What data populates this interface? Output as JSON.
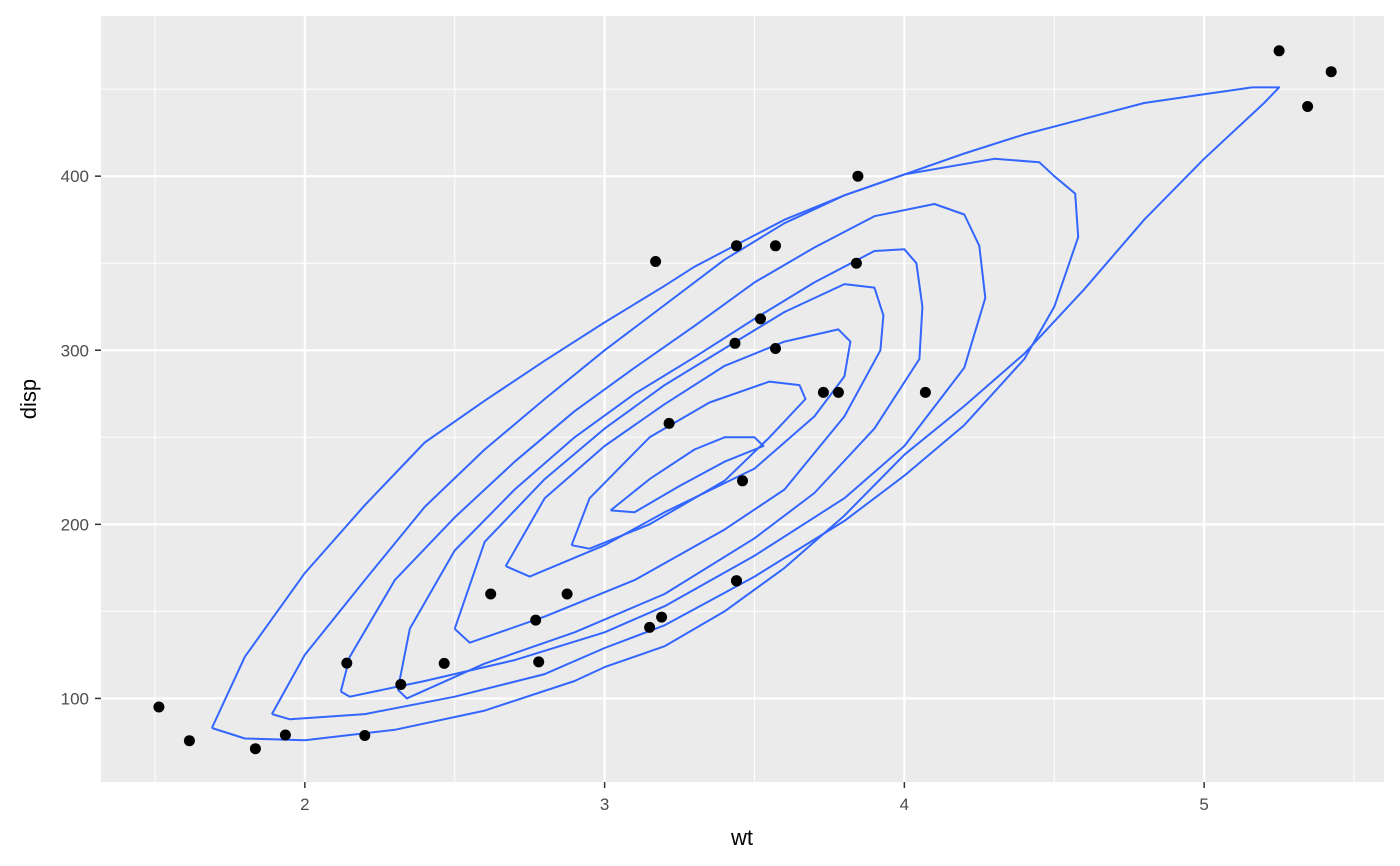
{
  "chart_data": {
    "type": "scatter",
    "title": "",
    "xlabel": "wt",
    "ylabel": "disp",
    "xlim": [
      1.32,
      5.6
    ],
    "ylim": [
      52,
      492
    ],
    "x_major_ticks": [
      2,
      3,
      4,
      5
    ],
    "x_minor_ticks": [
      1.5,
      2.5,
      3.5,
      4.5,
      5.5
    ],
    "y_major_ticks": [
      100,
      200,
      300,
      400
    ],
    "y_minor_ticks": [
      150,
      250,
      350,
      450
    ],
    "grid": true,
    "legend": "none",
    "colors": {
      "panel": "#ebebeb",
      "grid": "#ffffff",
      "points": "#000000",
      "contours": "#3366ff"
    },
    "points": [
      {
        "x": 1.513,
        "y": 95.1
      },
      {
        "x": 1.615,
        "y": 75.7
      },
      {
        "x": 1.835,
        "y": 71.1
      },
      {
        "x": 1.935,
        "y": 79.0
      },
      {
        "x": 2.14,
        "y": 120.3
      },
      {
        "x": 2.2,
        "y": 78.7
      },
      {
        "x": 2.32,
        "y": 108.0
      },
      {
        "x": 2.465,
        "y": 120.1
      },
      {
        "x": 2.62,
        "y": 160.0
      },
      {
        "x": 2.77,
        "y": 145.0
      },
      {
        "x": 2.78,
        "y": 121.0
      },
      {
        "x": 2.875,
        "y": 160.0
      },
      {
        "x": 3.15,
        "y": 140.8
      },
      {
        "x": 3.17,
        "y": 351.0
      },
      {
        "x": 3.19,
        "y": 146.7
      },
      {
        "x": 3.215,
        "y": 258.0
      },
      {
        "x": 3.435,
        "y": 304.0
      },
      {
        "x": 3.44,
        "y": 167.6
      },
      {
        "x": 3.44,
        "y": 167.6
      },
      {
        "x": 3.44,
        "y": 360.0
      },
      {
        "x": 3.46,
        "y": 225.0
      },
      {
        "x": 3.52,
        "y": 318.0
      },
      {
        "x": 3.57,
        "y": 301.0
      },
      {
        "x": 3.57,
        "y": 360.0
      },
      {
        "x": 3.73,
        "y": 275.8
      },
      {
        "x": 3.78,
        "y": 275.8
      },
      {
        "x": 3.84,
        "y": 350.0
      },
      {
        "x": 3.845,
        "y": 400.0
      },
      {
        "x": 4.07,
        "y": 275.8
      },
      {
        "x": 5.25,
        "y": 472.0
      },
      {
        "x": 5.345,
        "y": 440.0
      },
      {
        "x": 5.424,
        "y": 460.0
      }
    ],
    "density_contours": [
      {
        "level": 1,
        "points": [
          [
            1.69,
            83
          ],
          [
            1.8,
            77
          ],
          [
            2.0,
            76
          ],
          [
            2.3,
            82
          ],
          [
            2.6,
            93
          ],
          [
            2.9,
            110
          ],
          [
            3.0,
            118
          ],
          [
            3.2,
            130
          ],
          [
            3.4,
            150
          ],
          [
            3.6,
            175
          ],
          [
            3.8,
            205
          ],
          [
            4.0,
            240
          ],
          [
            4.2,
            268
          ],
          [
            4.4,
            298
          ],
          [
            4.6,
            335
          ],
          [
            4.8,
            375
          ],
          [
            5.0,
            410
          ],
          [
            5.2,
            442
          ],
          [
            5.25,
            451
          ],
          [
            5.16,
            451
          ],
          [
            5.0,
            447
          ],
          [
            4.8,
            442
          ],
          [
            4.6,
            433
          ],
          [
            4.4,
            424
          ],
          [
            4.2,
            413
          ],
          [
            4.0,
            401
          ],
          [
            3.8,
            389
          ],
          [
            3.6,
            375
          ],
          [
            3.4,
            357
          ],
          [
            3.3,
            348
          ],
          [
            3.2,
            337
          ],
          [
            3.0,
            316
          ],
          [
            2.8,
            294
          ],
          [
            2.6,
            271
          ],
          [
            2.4,
            247
          ],
          [
            2.2,
            211
          ],
          [
            2.0,
            172
          ],
          [
            1.8,
            124
          ],
          [
            1.69,
            83
          ]
        ]
      },
      {
        "level": 2,
        "points": [
          [
            1.89,
            91
          ],
          [
            1.95,
            88
          ],
          [
            2.2,
            91
          ],
          [
            2.5,
            101
          ],
          [
            2.8,
            114
          ],
          [
            3.0,
            129
          ],
          [
            3.2,
            142
          ],
          [
            3.5,
            170
          ],
          [
            3.8,
            202
          ],
          [
            4.0,
            228
          ],
          [
            4.2,
            257
          ],
          [
            4.4,
            295
          ],
          [
            4.5,
            325
          ],
          [
            4.58,
            365
          ],
          [
            4.57,
            390
          ],
          [
            4.5,
            400
          ],
          [
            4.45,
            408
          ],
          [
            4.3,
            410
          ],
          [
            4.0,
            401
          ],
          [
            3.8,
            389
          ],
          [
            3.6,
            373
          ],
          [
            3.4,
            352
          ],
          [
            3.2,
            326
          ],
          [
            3.0,
            300
          ],
          [
            2.8,
            272
          ],
          [
            2.6,
            243
          ],
          [
            2.4,
            210
          ],
          [
            2.2,
            168
          ],
          [
            2.0,
            125
          ],
          [
            1.89,
            91
          ]
        ]
      },
      {
        "level": 3,
        "points": [
          [
            2.12,
            104
          ],
          [
            2.15,
            101
          ],
          [
            2.4,
            110
          ],
          [
            2.7,
            122
          ],
          [
            3.0,
            138
          ],
          [
            3.2,
            153
          ],
          [
            3.5,
            182
          ],
          [
            3.8,
            215
          ],
          [
            4.0,
            245
          ],
          [
            4.2,
            290
          ],
          [
            4.27,
            330
          ],
          [
            4.25,
            360
          ],
          [
            4.2,
            378
          ],
          [
            4.1,
            384
          ],
          [
            3.9,
            377
          ],
          [
            3.7,
            359
          ],
          [
            3.5,
            339
          ],
          [
            3.3,
            314
          ],
          [
            3.1,
            290
          ],
          [
            2.9,
            265
          ],
          [
            2.7,
            236
          ],
          [
            2.5,
            204
          ],
          [
            2.3,
            168
          ],
          [
            2.15,
            124
          ],
          [
            2.12,
            104
          ]
        ]
      },
      {
        "level": 4,
        "points": [
          [
            2.31,
            105
          ],
          [
            2.34,
            100
          ],
          [
            2.6,
            120
          ],
          [
            2.9,
            138
          ],
          [
            3.2,
            160
          ],
          [
            3.5,
            192
          ],
          [
            3.7,
            218
          ],
          [
            3.9,
            255
          ],
          [
            4.05,
            295
          ],
          [
            4.06,
            325
          ],
          [
            4.04,
            350
          ],
          [
            4.0,
            358
          ],
          [
            3.9,
            357
          ],
          [
            3.7,
            339
          ],
          [
            3.5,
            318
          ],
          [
            3.3,
            296
          ],
          [
            3.1,
            275
          ],
          [
            2.9,
            250
          ],
          [
            2.7,
            220
          ],
          [
            2.5,
            185
          ],
          [
            2.35,
            140
          ],
          [
            2.31,
            105
          ]
        ]
      },
      {
        "level": 5,
        "points": [
          [
            2.5,
            140
          ],
          [
            2.55,
            132
          ],
          [
            2.8,
            147
          ],
          [
            3.1,
            168
          ],
          [
            3.4,
            197
          ],
          [
            3.6,
            220
          ],
          [
            3.8,
            262
          ],
          [
            3.92,
            300
          ],
          [
            3.93,
            320
          ],
          [
            3.9,
            336
          ],
          [
            3.8,
            338
          ],
          [
            3.6,
            322
          ],
          [
            3.4,
            301
          ],
          [
            3.2,
            280
          ],
          [
            3.0,
            255
          ],
          [
            2.8,
            226
          ],
          [
            2.6,
            190
          ],
          [
            2.5,
            140
          ]
        ]
      },
      {
        "level": 6,
        "points": [
          [
            2.67,
            176
          ],
          [
            2.75,
            170
          ],
          [
            3.0,
            188
          ],
          [
            3.2,
            207
          ],
          [
            3.5,
            232
          ],
          [
            3.7,
            262
          ],
          [
            3.8,
            285
          ],
          [
            3.82,
            305
          ],
          [
            3.78,
            312
          ],
          [
            3.6,
            305
          ],
          [
            3.4,
            291
          ],
          [
            3.2,
            269
          ],
          [
            3.0,
            245
          ],
          [
            2.8,
            215
          ],
          [
            2.67,
            176
          ]
        ]
      },
      {
        "level": 7,
        "points": [
          [
            2.89,
            188
          ],
          [
            2.95,
            186
          ],
          [
            3.15,
            200
          ],
          [
            3.4,
            225
          ],
          [
            3.55,
            250
          ],
          [
            3.67,
            272
          ],
          [
            3.65,
            280
          ],
          [
            3.55,
            282
          ],
          [
            3.35,
            270
          ],
          [
            3.15,
            250
          ],
          [
            2.95,
            215
          ],
          [
            2.89,
            188
          ]
        ]
      },
      {
        "level": 8,
        "points": [
          [
            3.02,
            208
          ],
          [
            3.1,
            207
          ],
          [
            3.25,
            222
          ],
          [
            3.4,
            236
          ],
          [
            3.53,
            245
          ],
          [
            3.5,
            250
          ],
          [
            3.4,
            250
          ],
          [
            3.3,
            243
          ],
          [
            3.15,
            226
          ],
          [
            3.02,
            208
          ]
        ]
      }
    ]
  }
}
